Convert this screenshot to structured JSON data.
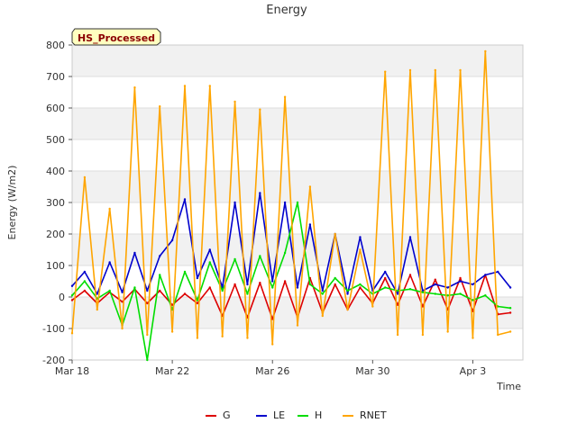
{
  "chart_data": {
    "type": "line",
    "title": "Energy",
    "xlabel": "Time",
    "ylabel": "Energy (W/m2)",
    "badge": "HS_Processed",
    "ylim": [
      -200,
      800
    ],
    "xlim": [
      "2024-03-18",
      "2024-04-05"
    ],
    "yticks": [
      -200,
      -100,
      0,
      100,
      200,
      300,
      400,
      500,
      600,
      700,
      800
    ],
    "xticks": [
      {
        "label": "Mar 18",
        "date": "2024-03-18"
      },
      {
        "label": "Mar 22",
        "date": "2024-03-22"
      },
      {
        "label": "Mar 26",
        "date": "2024-03-26"
      },
      {
        "label": "Mar 30",
        "date": "2024-03-30"
      },
      {
        "label": "Apr 3",
        "date": "2024-04-03"
      }
    ],
    "grid": true,
    "legend_position": "bottom-center",
    "x": [
      "2024-03-18 00:00",
      "2024-03-18 12:00",
      "2024-03-19 00:00",
      "2024-03-19 12:00",
      "2024-03-20 00:00",
      "2024-03-20 12:00",
      "2024-03-21 00:00",
      "2024-03-21 12:00",
      "2024-03-22 00:00",
      "2024-03-22 12:00",
      "2024-03-23 00:00",
      "2024-03-23 12:00",
      "2024-03-24 00:00",
      "2024-03-24 12:00",
      "2024-03-25 00:00",
      "2024-03-25 12:00",
      "2024-03-26 00:00",
      "2024-03-26 12:00",
      "2024-03-27 00:00",
      "2024-03-27 12:00",
      "2024-03-28 00:00",
      "2024-03-28 12:00",
      "2024-03-29 00:00",
      "2024-03-29 12:00",
      "2024-03-30 00:00",
      "2024-03-30 12:00",
      "2024-03-31 00:00",
      "2024-03-31 12:00",
      "2024-04-01 00:00",
      "2024-04-01 12:00",
      "2024-04-02 00:00",
      "2024-04-02 12:00",
      "2024-04-03 00:00",
      "2024-04-03 12:00",
      "2024-04-04 00:00",
      "2024-04-04 12:00"
    ],
    "series": [
      {
        "name": "G",
        "color": "#dd0000",
        "values": [
          -10,
          20,
          -20,
          15,
          -15,
          25,
          -20,
          20,
          -25,
          10,
          -20,
          30,
          -60,
          40,
          -65,
          45,
          -70,
          50,
          -65,
          60,
          -50,
          40,
          -40,
          30,
          -20,
          60,
          -25,
          70,
          -30,
          55,
          -40,
          60,
          -45,
          70,
          -55,
          -50
        ]
      },
      {
        "name": "LE",
        "color": "#0000cc",
        "values": [
          35,
          80,
          10,
          110,
          15,
          140,
          20,
          130,
          180,
          310,
          60,
          150,
          30,
          300,
          40,
          330,
          50,
          300,
          30,
          230,
          20,
          200,
          10,
          190,
          20,
          80,
          10,
          190,
          20,
          40,
          30,
          50,
          40,
          70,
          80,
          30
        ]
      },
      {
        "name": "H",
        "color": "#00dd00",
        "values": [
          5,
          50,
          -5,
          20,
          -90,
          30,
          -200,
          70,
          -40,
          80,
          -10,
          110,
          20,
          120,
          10,
          130,
          30,
          140,
          300,
          40,
          10,
          60,
          20,
          40,
          10,
          30,
          20,
          25,
          15,
          10,
          5,
          10,
          -10,
          5,
          -30,
          -35
        ]
      },
      {
        "name": "RNET",
        "color": "#ffa500",
        "values": [
          -115,
          380,
          -40,
          280,
          -100,
          665,
          -120,
          605,
          -110,
          670,
          -130,
          670,
          -125,
          620,
          -130,
          595,
          -150,
          635,
          -90,
          350,
          -60,
          200,
          -40,
          150,
          -30,
          715,
          -120,
          720,
          -120,
          720,
          -110,
          720,
          -130,
          780,
          -120,
          -110
        ]
      }
    ]
  }
}
